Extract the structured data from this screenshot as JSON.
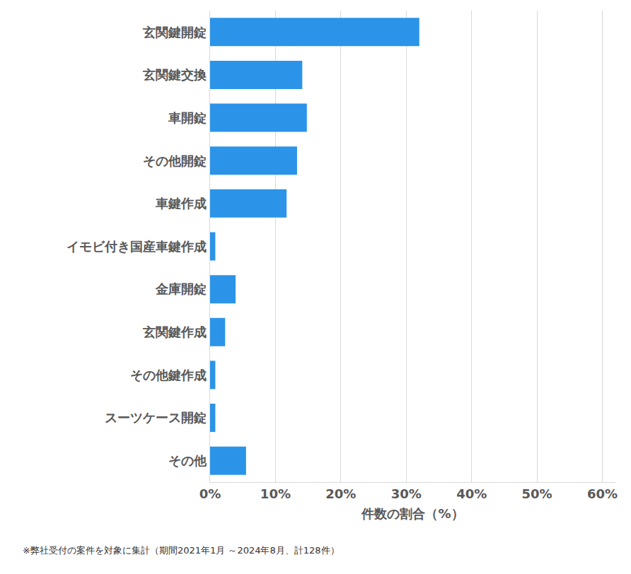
{
  "chart_data": {
    "type": "bar",
    "orientation": "horizontal",
    "categories": [
      "玄関鍵開錠",
      "玄関鍵交換",
      "車開錠",
      "その他開錠",
      "車鍵作成",
      "イモビ付き国産車鍵作成",
      "金庫開錠",
      "玄関鍵作成",
      "その他鍵作成",
      "スーツケース開錠",
      "その他"
    ],
    "values": [
      32.0,
      14.1,
      14.8,
      13.3,
      11.7,
      0.8,
      3.9,
      2.3,
      0.8,
      0.8,
      5.5
    ],
    "color": "#2b94e8",
    "x_label": "件数の割合（%）",
    "xlim": [
      0,
      62
    ],
    "xticks": [
      {
        "value": 0,
        "label": "0%"
      },
      {
        "value": 10,
        "label": "10%"
      },
      {
        "value": 20,
        "label": "20%"
      },
      {
        "value": 30,
        "label": "30%"
      },
      {
        "value": 40,
        "label": "40%"
      },
      {
        "value": 50,
        "label": "50%"
      },
      {
        "value": 60,
        "label": "60%"
      }
    ],
    "grid": true,
    "footnote": "※弊社受付の案件を対象に集計（期間2021年1月 ～2024年8月、計128件）"
  }
}
